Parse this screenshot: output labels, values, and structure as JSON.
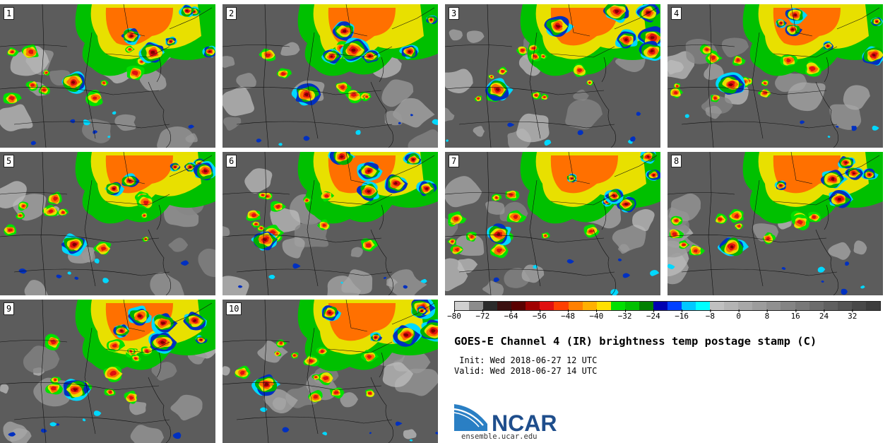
{
  "panels": [
    {
      "label": "1"
    },
    {
      "label": "2"
    },
    {
      "label": "3"
    },
    {
      "label": "4"
    },
    {
      "label": "5"
    },
    {
      "label": "6"
    },
    {
      "label": "7"
    },
    {
      "label": "8"
    },
    {
      "label": "9"
    },
    {
      "label": "10"
    }
  ],
  "colorbar": {
    "tick_labels": [
      "−80",
      "−72",
      "−64",
      "−56",
      "−48",
      "−40",
      "−32",
      "−24",
      "−16",
      "−8",
      "0",
      "8",
      "16",
      "24",
      "32"
    ],
    "range": [
      -80,
      40
    ],
    "step": 4,
    "colors": [
      "#d0d0d0",
      "#8c8c8c",
      "#2b2b2b",
      "#3a1010",
      "#5a0000",
      "#a00000",
      "#e01010",
      "#ff4000",
      "#ff8000",
      "#ffb000",
      "#ffe000",
      "#00e000",
      "#00c000",
      "#008000",
      "#0000b0",
      "#0040ff",
      "#00c8ff",
      "#00ffff",
      "#c0c0c0",
      "#b4b4b4",
      "#a8a8a8",
      "#9c9c9c",
      "#909090",
      "#848484",
      "#787878",
      "#6c6c6c",
      "#606060",
      "#545454",
      "#484848",
      "#3c3c3c"
    ]
  },
  "title": "GOES-E Channel 4 (IR) brightness temp postage stamp (C)",
  "init_text": " Init: Wed 2018-06-27 12 UTC",
  "valid_text": "Valid: Wed 2018-06-27 14 UTC",
  "logo": {
    "text": "NCAR",
    "url": "ensemble.ucar.edu",
    "color": "#1f4e8c",
    "accent": "#2a7fc4"
  }
}
